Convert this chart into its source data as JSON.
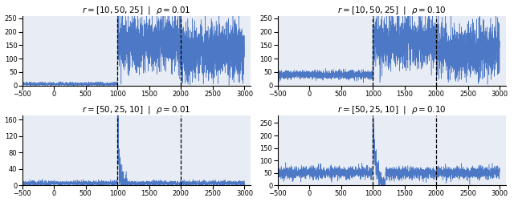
{
  "change_points": [
    1000,
    2000
  ],
  "x_start": -500,
  "xlim": [
    -500,
    3100
  ],
  "dashed_line_color": "black",
  "line_color": "#4472C4",
  "bg_color": "#E8ECF4",
  "subplots": [
    {
      "title": "$r=[10,50,25]$  |  $\\rho=0.01$",
      "segments": [
        {
          "x_start": -500,
          "x_end": 1000,
          "base": 5,
          "noise": 3.5
        },
        {
          "x_start": 1000,
          "x_end": 2000,
          "base": 160,
          "noise": 50
        },
        {
          "x_start": 2000,
          "x_end": 3000,
          "base": 130,
          "noise": 50
        }
      ],
      "ylim": [
        0,
        260
      ],
      "yticks": [
        0,
        50,
        100,
        150,
        200,
        250
      ],
      "seed": 10
    },
    {
      "title": "$r=[10,50,25]$  |  $\\rho=0.10$",
      "segments": [
        {
          "x_start": -500,
          "x_end": 1000,
          "base": 40,
          "noise": 8
        },
        {
          "x_start": 1000,
          "x_end": 2000,
          "base": 160,
          "noise": 50
        },
        {
          "x_start": 2000,
          "x_end": 3000,
          "base": 130,
          "noise": 50
        }
      ],
      "ylim": [
        0,
        260
      ],
      "yticks": [
        0,
        50,
        100,
        150,
        200,
        250
      ],
      "seed": 20
    },
    {
      "title": "$r=[50,25,10]$  |  $\\rho=0.01$",
      "segments": [
        {
          "x_start": -500,
          "x_end": 1000,
          "base": 5,
          "noise": 3
        },
        {
          "x_start": 1000,
          "x_end": 1150,
          "base": 60,
          "noise": 40,
          "spike_decay": 5.0,
          "spike_peak": 150
        },
        {
          "x_start": 1150,
          "x_end": 2000,
          "base": 5,
          "noise": 3
        },
        {
          "x_start": 2000,
          "x_end": 3000,
          "base": 5,
          "noise": 3
        }
      ],
      "ylim": [
        0,
        170
      ],
      "yticks": [
        0,
        40,
        80,
        120,
        160
      ],
      "seed": 30
    },
    {
      "title": "$r=[50,25,10]$  |  $\\rho=0.10$",
      "segments": [
        {
          "x_start": -500,
          "x_end": 1000,
          "base": 50,
          "noise": 12
        },
        {
          "x_start": 1000,
          "x_end": 1200,
          "base": 80,
          "noise": 40,
          "spike_decay": 4.0,
          "spike_peak": 250
        },
        {
          "x_start": 1200,
          "x_end": 2000,
          "base": 50,
          "noise": 12
        },
        {
          "x_start": 2000,
          "x_end": 3000,
          "base": 50,
          "noise": 12
        }
      ],
      "ylim": [
        0,
        280
      ],
      "yticks": [
        0,
        50,
        100,
        150,
        200,
        250
      ],
      "seed": 40
    }
  ]
}
